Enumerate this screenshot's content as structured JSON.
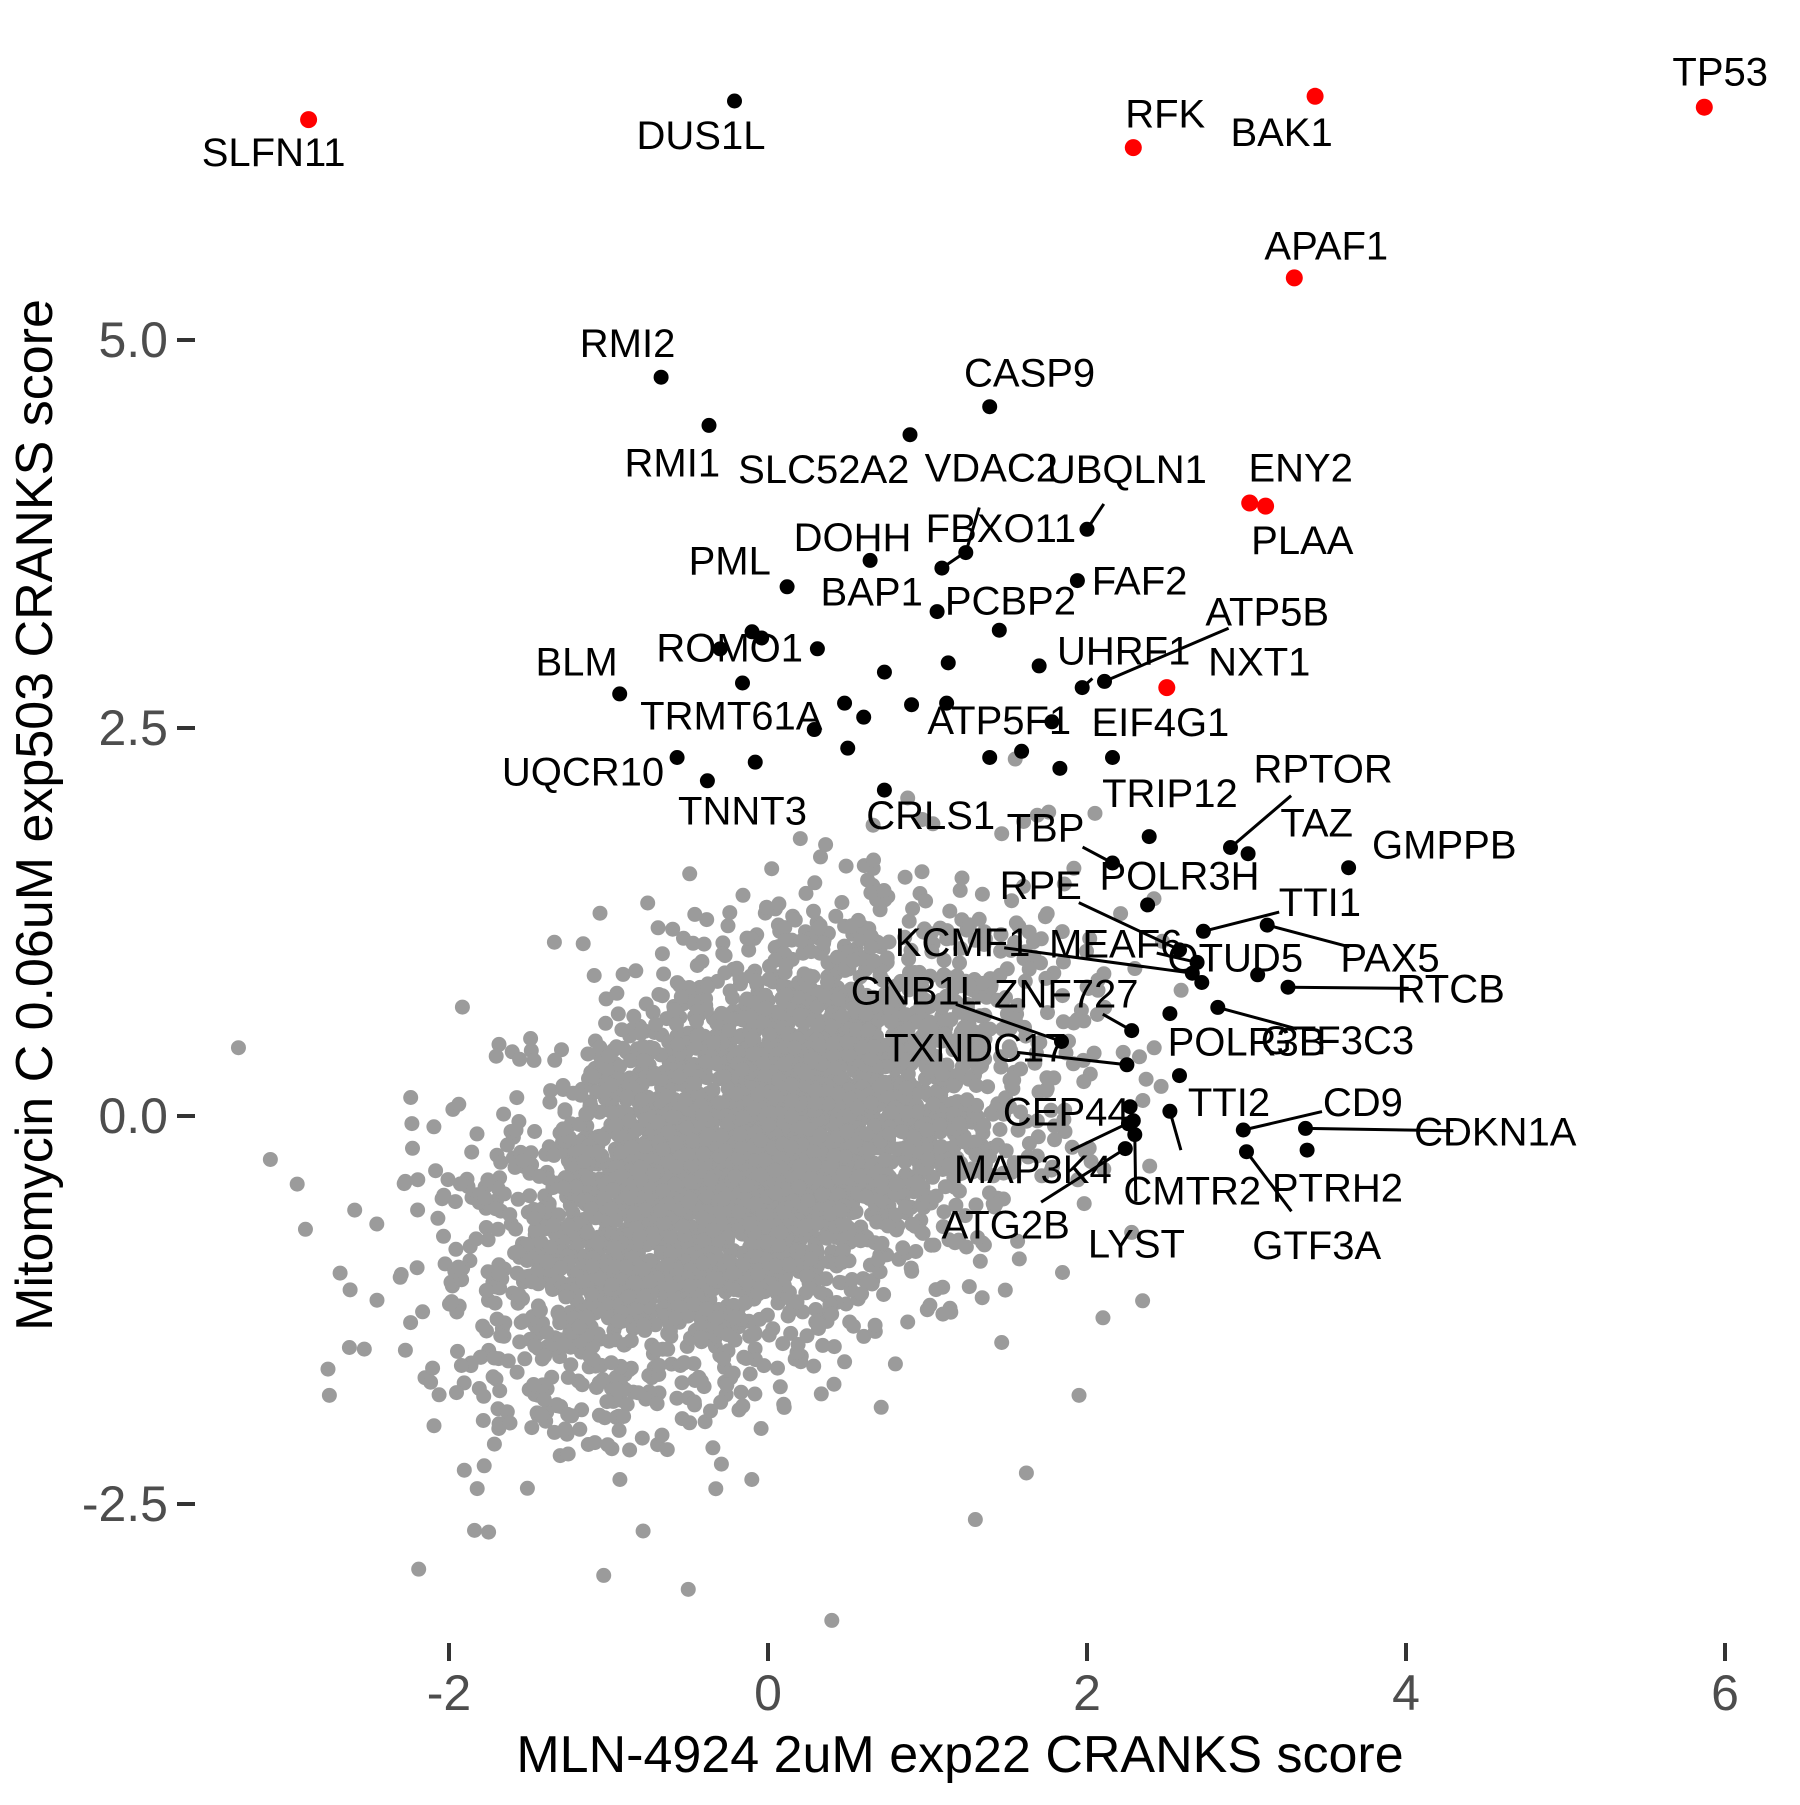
{
  "chart_data": {
    "type": "scatter",
    "title": "",
    "xlabel": "MLN-4924 2uM exp22 CRANKS score",
    "ylabel": "Mitomycin C 0.06uM exp503 CRANKS score",
    "x_ticks": [
      {
        "v": -2,
        "label": "-2"
      },
      {
        "v": 0,
        "label": "0"
      },
      {
        "v": 2,
        "label": "2"
      },
      {
        "v": 4,
        "label": "4"
      },
      {
        "v": 6,
        "label": "6"
      }
    ],
    "y_ticks": [
      {
        "v": -2.5,
        "label": "-2.5"
      },
      {
        "v": 0,
        "label": "0.0"
      },
      {
        "v": 2.5,
        "label": "2.5"
      },
      {
        "v": 5,
        "label": "5.0"
      }
    ],
    "xlim": [
      -3.6,
      6.5
    ],
    "ylim": [
      -3.6,
      6.9
    ],
    "grid": "off",
    "legend": "none",
    "colors": {
      "background_points": "#9B9B9B",
      "labeled_points": "#000000",
      "highlight_points": "#FF0000",
      "tick_text": "#4D4D4D",
      "tick_mark": "#333333",
      "leader_line": "#000000"
    },
    "background_cloud": {
      "description": "unlabeled genes, dense correlated blob",
      "n_main": 3300,
      "main": {
        "cx": -0.25,
        "cy": -0.35,
        "sdx": 0.8,
        "sdy": 0.72,
        "rho": 0.45
      },
      "n_secondary": 650,
      "secondary": {
        "cx": 0.55,
        "cy": 0.15,
        "sdx": 0.75,
        "sdy": 0.65,
        "rho": 0.3
      },
      "clip": {
        "xmin": -3.45,
        "xmax": 2.6,
        "ymin": -3.2,
        "ymax": 2.45
      },
      "seed": 42,
      "point_radius_px": 7.5
    },
    "extra_gray_points": [
      [
        -3.32,
        0.44
      ],
      [
        -3.12,
        -0.28
      ],
      [
        -2.9,
        -0.73
      ],
      [
        -2.62,
        -1.12
      ],
      [
        -2.75,
        -1.8
      ],
      [
        -2.19,
        -2.92
      ],
      [
        -1.84,
        -2.67
      ],
      [
        -1.03,
        -2.96
      ],
      [
        0.4,
        -3.25
      ],
      [
        -0.5,
        -3.05
      ],
      [
        1.3,
        -2.6
      ],
      [
        1.62,
        -2.3
      ],
      [
        1.95,
        -1.8
      ],
      [
        2.1,
        -1.3
      ],
      [
        2.28,
        -0.75
      ],
      [
        2.35,
        0.1
      ],
      [
        2.3,
        0.95
      ],
      [
        2.42,
        1.4
      ],
      [
        2.05,
        1.95
      ],
      [
        1.55,
        2.3
      ]
    ],
    "extra_black_points": [
      [
        0.9,
        2.65
      ],
      [
        1.12,
        2.66
      ],
      [
        0.48,
        2.66
      ],
      [
        0.6,
        2.57
      ],
      [
        0.73,
        2.86
      ],
      [
        0.29,
        2.49
      ],
      [
        0.5,
        2.37
      ],
      [
        -0.08,
        2.28
      ],
      [
        1.39,
        2.31
      ],
      [
        1.59,
        2.35
      ],
      [
        1.83,
        2.24
      ],
      [
        -0.1,
        3.12
      ],
      [
        -0.04,
        3.08
      ],
      [
        -0.3,
        3.01
      ],
      [
        2.26,
        -0.05
      ],
      [
        3.07,
        0.91
      ],
      [
        1.13,
        2.92
      ],
      [
        1.7,
        2.9
      ]
    ],
    "labeled_genes": [
      {
        "gene": "SLFN11",
        "x": -2.88,
        "y": 6.42,
        "color": "red",
        "label_x": -3.1,
        "label_y": 6.21,
        "leader": false
      },
      {
        "gene": "DUS1L",
        "x": -0.21,
        "y": 6.54,
        "color": "black",
        "label_x": -0.42,
        "label_y": 6.32,
        "leader": false
      },
      {
        "gene": "RFK",
        "x": 2.29,
        "y": 6.24,
        "color": "red",
        "label_x": 2.49,
        "label_y": 6.46,
        "leader": false
      },
      {
        "gene": "BAK1",
        "x": 3.43,
        "y": 6.57,
        "color": "red",
        "label_x": 3.22,
        "label_y": 6.34,
        "leader": false
      },
      {
        "gene": "TP53",
        "x": 5.87,
        "y": 6.5,
        "color": "red",
        "label_x": 5.97,
        "label_y": 6.73,
        "leader": false
      },
      {
        "gene": "APAF1",
        "x": 3.3,
        "y": 5.4,
        "color": "red",
        "label_x": 3.5,
        "label_y": 5.61,
        "leader": false
      },
      {
        "gene": "RMI2",
        "x": -0.67,
        "y": 4.76,
        "color": "black",
        "label_x": -0.88,
        "label_y": 4.98,
        "leader": false
      },
      {
        "gene": "CASP9",
        "x": 1.39,
        "y": 4.57,
        "color": "black",
        "label_x": 1.64,
        "label_y": 4.79,
        "leader": false
      },
      {
        "gene": "RMI1",
        "x": -0.37,
        "y": 4.45,
        "color": "black",
        "label_x": -0.6,
        "label_y": 4.21,
        "leader": false
      },
      {
        "gene": "SLC52A2",
        "x": 0.89,
        "y": 4.39,
        "color": "black",
        "label_x": 0.35,
        "label_y": 4.17,
        "leader": false
      },
      {
        "gene": "VDAC2",
        "x": 1.24,
        "y": 3.63,
        "color": "black",
        "label_x": 1.4,
        "label_y": 4.18,
        "leader": true
      },
      {
        "gene": "UBQLN1",
        "x": 2.0,
        "y": 3.78,
        "color": "black",
        "label_x": 2.25,
        "label_y": 4.17,
        "leader": true
      },
      {
        "gene": "ENY2",
        "x": 3.02,
        "y": 3.95,
        "color": "red",
        "label_x": 3.34,
        "label_y": 4.18,
        "leader": false
      },
      {
        "gene": "PLAA",
        "x": 3.12,
        "y": 3.93,
        "color": "red",
        "label_x": 3.35,
        "label_y": 3.71,
        "leader": false
      },
      {
        "gene": "FBXO11",
        "x": 1.09,
        "y": 3.53,
        "color": "black",
        "label_x": 1.46,
        "label_y": 3.79,
        "leader": true
      },
      {
        "gene": "DOHH",
        "x": 0.64,
        "y": 3.58,
        "color": "black",
        "label_x": 0.53,
        "label_y": 3.73,
        "leader": false
      },
      {
        "gene": "PML",
        "x": 0.12,
        "y": 3.41,
        "color": "black",
        "label_x": -0.24,
        "label_y": 3.58,
        "leader": false
      },
      {
        "gene": "BAP1",
        "x": 1.06,
        "y": 3.25,
        "color": "black",
        "label_x": 0.65,
        "label_y": 3.38,
        "leader": false
      },
      {
        "gene": "PCBP2",
        "x": 1.45,
        "y": 3.13,
        "color": "black",
        "label_x": 1.52,
        "label_y": 3.32,
        "leader": false
      },
      {
        "gene": "FAF2",
        "x": 1.94,
        "y": 3.45,
        "color": "black",
        "label_x": 2.33,
        "label_y": 3.45,
        "leader": false
      },
      {
        "gene": "ATP5B",
        "x": 2.11,
        "y": 2.8,
        "color": "black",
        "label_x": 3.13,
        "label_y": 3.25,
        "leader": true
      },
      {
        "gene": "UHRF1",
        "x": 1.97,
        "y": 2.76,
        "color": "black",
        "label_x": 2.23,
        "label_y": 3.0,
        "leader": true
      },
      {
        "gene": "NXT1",
        "x": 2.5,
        "y": 2.76,
        "color": "red",
        "label_x": 3.08,
        "label_y": 2.93,
        "leader": false
      },
      {
        "gene": "ROMO1",
        "x": 0.31,
        "y": 3.01,
        "color": "black",
        "label_x": -0.24,
        "label_y": 3.02,
        "leader": false
      },
      {
        "gene": "BLM",
        "x": -0.93,
        "y": 2.72,
        "color": "black",
        "label_x": -1.2,
        "label_y": 2.93,
        "leader": false
      },
      {
        "gene": "TRMT61A",
        "x": -0.16,
        "y": 2.79,
        "color": "black",
        "label_x": -0.23,
        "label_y": 2.58,
        "leader": false
      },
      {
        "gene": "ATP5F1",
        "x": 1.78,
        "y": 2.54,
        "color": "black",
        "label_x": 1.45,
        "label_y": 2.55,
        "leader": false
      },
      {
        "gene": "EIF4G1",
        "x": 2.16,
        "y": 2.31,
        "color": "black",
        "label_x": 2.46,
        "label_y": 2.54,
        "leader": false
      },
      {
        "gene": "UQCR10",
        "x": -0.57,
        "y": 2.31,
        "color": "black",
        "label_x": -1.16,
        "label_y": 2.22,
        "leader": false
      },
      {
        "gene": "TNNT3",
        "x": -0.38,
        "y": 2.16,
        "color": "black",
        "label_x": -0.16,
        "label_y": 1.97,
        "leader": false
      },
      {
        "gene": "CRLS1",
        "x": 0.73,
        "y": 2.1,
        "color": "black",
        "label_x": 1.02,
        "label_y": 1.94,
        "leader": false
      },
      {
        "gene": "TRIP12",
        "x": 2.39,
        "y": 1.8,
        "color": "black",
        "label_x": 2.52,
        "label_y": 2.08,
        "leader": false
      },
      {
        "gene": "RPTOR",
        "x": 2.9,
        "y": 1.73,
        "color": "black",
        "label_x": 3.48,
        "label_y": 2.24,
        "leader": true
      },
      {
        "gene": "TAZ",
        "x": 3.01,
        "y": 1.69,
        "color": "black",
        "label_x": 3.44,
        "label_y": 1.89,
        "leader": false
      },
      {
        "gene": "GMPPB",
        "x": 3.64,
        "y": 1.6,
        "color": "black",
        "label_x": 4.24,
        "label_y": 1.75,
        "leader": false
      },
      {
        "gene": "TBP",
        "x": 2.16,
        "y": 1.63,
        "color": "black",
        "label_x": 1.74,
        "label_y": 1.86,
        "leader": true
      },
      {
        "gene": "POLR3H",
        "x": 2.38,
        "y": 1.36,
        "color": "black",
        "label_x": 2.58,
        "label_y": 1.55,
        "leader": false
      },
      {
        "gene": "RPE",
        "x": 2.58,
        "y": 1.07,
        "color": "black",
        "label_x": 1.71,
        "label_y": 1.49,
        "leader": true
      },
      {
        "gene": "TTI1",
        "x": 2.73,
        "y": 1.19,
        "color": "black",
        "label_x": 3.46,
        "label_y": 1.38,
        "leader": true
      },
      {
        "gene": "KCMF1",
        "x": 2.66,
        "y": 0.92,
        "color": "black",
        "label_x": 1.22,
        "label_y": 1.12,
        "leader": true
      },
      {
        "gene": "MEAF6",
        "x": 2.69,
        "y": 0.99,
        "color": "black",
        "label_x": 2.18,
        "label_y": 1.11,
        "leader": true
      },
      {
        "gene": "OTUD5",
        "x": 2.72,
        "y": 0.86,
        "color": "black",
        "label_x": 2.93,
        "label_y": 1.02,
        "leader": false
      },
      {
        "gene": "PAX5",
        "x": 3.13,
        "y": 1.23,
        "color": "black",
        "label_x": 3.9,
        "label_y": 1.02,
        "leader": true
      },
      {
        "gene": "RTCB",
        "x": 3.26,
        "y": 0.83,
        "color": "black",
        "label_x": 4.28,
        "label_y": 0.82,
        "leader": true
      },
      {
        "gene": "GNB1L",
        "x": 1.84,
        "y": 0.48,
        "color": "black",
        "label_x": 0.93,
        "label_y": 0.81,
        "leader": true
      },
      {
        "gene": "ZNF727",
        "x": 2.28,
        "y": 0.55,
        "color": "black",
        "label_x": 1.87,
        "label_y": 0.79,
        "leader": true
      },
      {
        "gene": "POLR3B",
        "x": 2.52,
        "y": 0.66,
        "color": "black",
        "label_x": 3.0,
        "label_y": 0.48,
        "leader": false
      },
      {
        "gene": "GTF3C3",
        "x": 2.82,
        "y": 0.7,
        "color": "black",
        "label_x": 3.57,
        "label_y": 0.49,
        "leader": true
      },
      {
        "gene": "TXNDC17",
        "x": 2.25,
        "y": 0.33,
        "color": "black",
        "label_x": 1.3,
        "label_y": 0.44,
        "leader": true
      },
      {
        "gene": "CEP44",
        "x": 2.27,
        "y": 0.06,
        "color": "black",
        "label_x": 1.87,
        "label_y": 0.03,
        "leader": false
      },
      {
        "gene": "TTI2",
        "x": 2.58,
        "y": 0.26,
        "color": "black",
        "label_x": 2.89,
        "label_y": 0.09,
        "leader": false
      },
      {
        "gene": "CD9",
        "x": 2.98,
        "y": -0.09,
        "color": "black",
        "label_x": 3.73,
        "label_y": 0.09,
        "leader": true
      },
      {
        "gene": "CDKN1A",
        "x": 3.37,
        "y": -0.08,
        "color": "black",
        "label_x": 4.56,
        "label_y": -0.1,
        "leader": true
      },
      {
        "gene": "MAP3K4",
        "x": 2.29,
        "y": -0.03,
        "color": "black",
        "label_x": 1.66,
        "label_y": -0.34,
        "leader": true
      },
      {
        "gene": "CMTR2",
        "x": 2.52,
        "y": 0.03,
        "color": "black",
        "label_x": 2.66,
        "label_y": -0.48,
        "leader": true
      },
      {
        "gene": "PTRH2",
        "x": 3.38,
        "y": -0.22,
        "color": "black",
        "label_x": 3.57,
        "label_y": -0.46,
        "leader": false
      },
      {
        "gene": "ATG2B",
        "x": 2.24,
        "y": -0.21,
        "color": "black",
        "label_x": 1.49,
        "label_y": -0.7,
        "leader": true
      },
      {
        "gene": "LYST",
        "x": 2.3,
        "y": -0.12,
        "color": "black",
        "label_x": 2.31,
        "label_y": -0.82,
        "leader": true
      },
      {
        "gene": "GTF3A",
        "x": 3.0,
        "y": -0.23,
        "color": "black",
        "label_x": 3.44,
        "label_y": -0.83,
        "leader": true
      }
    ]
  }
}
